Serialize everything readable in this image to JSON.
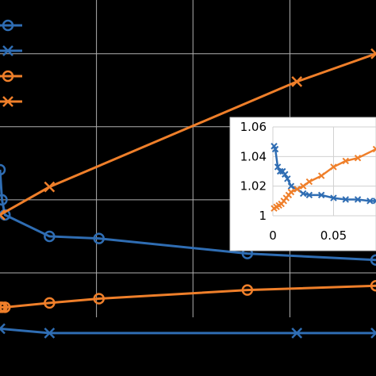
{
  "chart_data": [
    {
      "type": "line",
      "panel": "main",
      "grid": true,
      "legend": "top-left",
      "legend_labels_visible": false,
      "series": [
        {
          "color": "#2f6db3",
          "marker": "circle",
          "x": [
            0.0,
            0.02,
            0.05,
            0.5,
            1.0,
            2.5,
            3.8
          ],
          "y": [
            0.76,
            0.62,
            0.55,
            0.45,
            0.44,
            0.37,
            0.34
          ]
        },
        {
          "color": "#2f6db3",
          "marker": "x",
          "x": [
            0.0,
            0.5,
            3.0,
            3.8
          ],
          "y": [
            0.02,
            0.0,
            0.0,
            0.0
          ]
        },
        {
          "color": "#ef7f2a",
          "marker": "circle",
          "x": [
            0.0,
            0.02,
            0.05,
            0.5,
            1.0,
            2.5,
            3.8
          ],
          "y": [
            0.12,
            0.12,
            0.12,
            0.14,
            0.16,
            0.2,
            0.22
          ]
        },
        {
          "color": "#ef7f2a",
          "marker": "x",
          "x": [
            0.0,
            0.5,
            3.0,
            3.8
          ],
          "y": [
            0.55,
            0.68,
            1.17,
            1.3
          ]
        }
      ]
    },
    {
      "type": "line",
      "panel": "inset",
      "grid": true,
      "x_ticks": [
        "0",
        "0.05"
      ],
      "y_ticks": [
        "1",
        "1.02",
        "1.04",
        "1.06"
      ],
      "xlim": [
        0,
        0.085
      ],
      "ylim": [
        1,
        1.06
      ],
      "series": [
        {
          "color": "#2f6db3",
          "marker": "x",
          "x": [
            0.001,
            0.002,
            0.004,
            0.006,
            0.008,
            0.01,
            0.012,
            0.015,
            0.02,
            0.025,
            0.03,
            0.04,
            0.05,
            0.06,
            0.07,
            0.08,
            0.085
          ],
          "y": [
            1.047,
            1.045,
            1.033,
            1.03,
            1.03,
            1.028,
            1.025,
            1.02,
            1.018,
            1.015,
            1.014,
            1.014,
            1.012,
            1.011,
            1.011,
            1.01,
            1.01
          ]
        },
        {
          "color": "#ef7f2a",
          "marker": "x",
          "x": [
            0.001,
            0.003,
            0.005,
            0.007,
            0.009,
            0.011,
            0.013,
            0.015,
            0.02,
            0.025,
            0.03,
            0.04,
            0.05,
            0.06,
            0.07,
            0.085
          ],
          "y": [
            1.005,
            1.006,
            1.007,
            1.008,
            1.01,
            1.012,
            1.014,
            1.016,
            1.018,
            1.02,
            1.023,
            1.027,
            1.033,
            1.037,
            1.039,
            1.045
          ]
        }
      ]
    }
  ]
}
